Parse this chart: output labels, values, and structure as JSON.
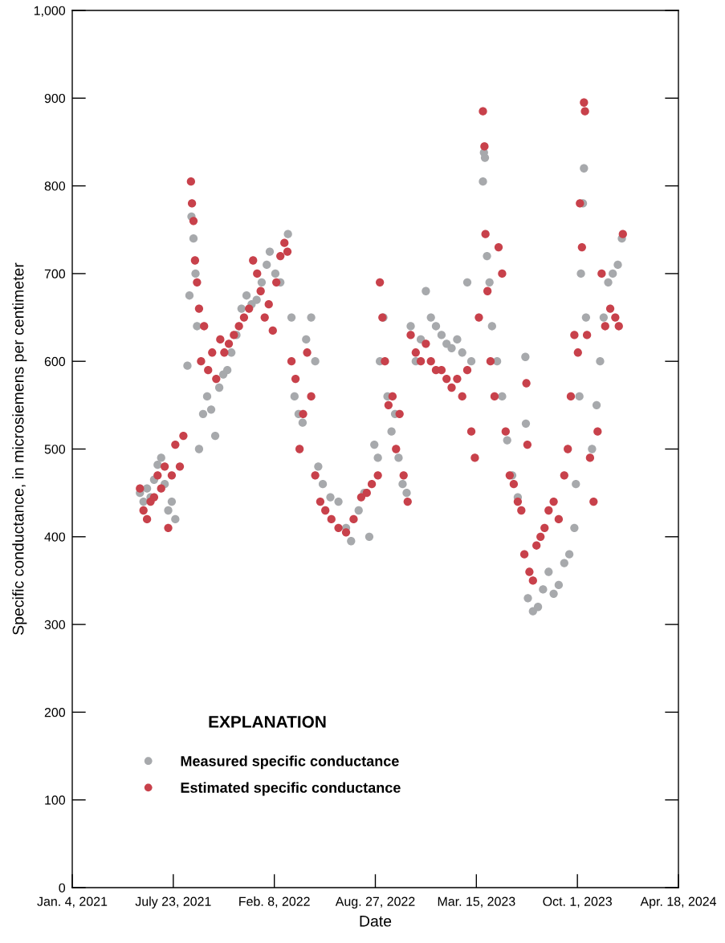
{
  "chart_data": {
    "type": "scatter",
    "xlabel": "Date",
    "ylabel": "Specific conductance, in microsiemens per centimeter",
    "legend_title": "EXPLANATION",
    "legend": "bottom left",
    "marker": "circle",
    "grid": false,
    "xlim": [
      "2021-01-04",
      "2024-04-18"
    ],
    "xticks": [
      {
        "value": "2021-01-04",
        "label": "Jan. 4, 2021"
      },
      {
        "value": "2021-07-23",
        "label": "July 23, 2021"
      },
      {
        "value": "2022-02-08",
        "label": "Feb. 8, 2022"
      },
      {
        "value": "2022-08-27",
        "label": "Aug. 27, 2022"
      },
      {
        "value": "2023-03-15",
        "label": "Mar. 15, 2023"
      },
      {
        "value": "2023-10-01",
        "label": "Oct. 1, 2023"
      },
      {
        "value": "2024-04-18",
        "label": "Apr. 18, 2024"
      }
    ],
    "ylim": [
      0,
      1000
    ],
    "yticks": [
      0,
      100,
      200,
      300,
      400,
      500,
      600,
      700,
      800,
      900,
      {
        "value": 1000,
        "label": "1,000"
      }
    ],
    "series": [
      {
        "name": "Measured specific conductance",
        "color": "#a7a9ac",
        "x": [
          "2021-05-18",
          "2021-05-25",
          "2021-06-01",
          "2021-06-08",
          "2021-06-15",
          "2021-06-22",
          "2021-06-29",
          "2021-07-06",
          "2021-07-13",
          "2021-07-20",
          "2021-07-27",
          "2021-08-20",
          "2021-08-24",
          "2021-08-28",
          "2021-09-01",
          "2021-09-05",
          "2021-09-08",
          "2021-09-12",
          "2021-09-20",
          "2021-09-28",
          "2021-10-06",
          "2021-10-14",
          "2021-10-22",
          "2021-10-30",
          "2021-11-07",
          "2021-11-15",
          "2021-11-25",
          "2021-12-05",
          "2021-12-15",
          "2021-12-25",
          "2022-01-04",
          "2022-01-14",
          "2022-01-24",
          "2022-01-30",
          "2022-02-10",
          "2022-02-20",
          "2022-03-07",
          "2022-03-14",
          "2022-03-20",
          "2022-03-28",
          "2022-04-05",
          "2022-04-12",
          "2022-04-22",
          "2022-04-30",
          "2022-05-06",
          "2022-05-15",
          "2022-05-30",
          "2022-06-15",
          "2022-06-30",
          "2022-07-10",
          "2022-07-25",
          "2022-08-05",
          "2022-08-15",
          "2022-08-25",
          "2022-09-01",
          "2022-09-05",
          "2022-09-12",
          "2022-09-20",
          "2022-09-28",
          "2022-10-05",
          "2022-10-12",
          "2022-10-20",
          "2022-10-28",
          "2022-11-05",
          "2022-11-15",
          "2022-11-25",
          "2022-12-05",
          "2022-12-15",
          "2022-12-25",
          "2023-01-05",
          "2023-01-15",
          "2023-01-25",
          "2023-02-05",
          "2023-02-15",
          "2023-02-25",
          "2023-03-05",
          "2023-03-28",
          "2023-03-30",
          "2023-04-01",
          "2023-04-05",
          "2023-04-10",
          "2023-04-15",
          "2023-04-25",
          "2023-05-05",
          "2023-05-15",
          "2023-05-25",
          "2023-06-05",
          "2023-06-20",
          "2023-06-21",
          "2023-06-25",
          "2023-07-05",
          "2023-07-15",
          "2023-07-25",
          "2023-08-05",
          "2023-08-15",
          "2023-08-25",
          "2023-09-05",
          "2023-09-15",
          "2023-09-25",
          "2023-09-28",
          "2023-10-05",
          "2023-10-08",
          "2023-10-12",
          "2023-10-14",
          "2023-10-18",
          "2023-10-30",
          "2023-11-08",
          "2023-11-15",
          "2023-11-22",
          "2023-12-01",
          "2023-12-10",
          "2023-12-20",
          "2023-12-28"
        ],
        "values": [
          450,
          440,
          455,
          445,
          465,
          482,
          490,
          460,
          430,
          440,
          420,
          595,
          675,
          765,
          740,
          700,
          640,
          500,
          540,
          560,
          545,
          515,
          570,
          585,
          590,
          610,
          630,
          660,
          675,
          665,
          670,
          690,
          710,
          725,
          700,
          690,
          745,
          650,
          560,
          540,
          530,
          625,
          650,
          600,
          480,
          460,
          445,
          440,
          410,
          395,
          430,
          450,
          400,
          505,
          490,
          600,
          650,
          560,
          520,
          540,
          490,
          460,
          450,
          640,
          600,
          625,
          680,
          650,
          640,
          630,
          620,
          615,
          625,
          610,
          690,
          600,
          805,
          838,
          832,
          720,
          690,
          640,
          600,
          560,
          510,
          470,
          445,
          605,
          529,
          330,
          315,
          320,
          340,
          360,
          335,
          345,
          370,
          380,
          410,
          460,
          560,
          700,
          780,
          820,
          650,
          500,
          550,
          600,
          650,
          690,
          700,
          710,
          740
        ]
      },
      {
        "name": "Estimated specific conductance",
        "color": "#c8414b",
        "x": [
          "2021-05-18",
          "2021-05-25",
          "2021-06-01",
          "2021-06-08",
          "2021-06-15",
          "2021-06-22",
          "2021-06-29",
          "2021-07-06",
          "2021-07-13",
          "2021-07-20",
          "2021-07-27",
          "2021-08-05",
          "2021-08-12",
          "2021-08-27",
          "2021-08-29",
          "2021-09-01",
          "2021-09-04",
          "2021-09-08",
          "2021-09-12",
          "2021-09-16",
          "2021-09-22",
          "2021-09-30",
          "2021-10-08",
          "2021-10-16",
          "2021-10-24",
          "2021-11-01",
          "2021-11-10",
          "2021-11-20",
          "2021-11-30",
          "2021-12-10",
          "2021-12-20",
          "2021-12-28",
          "2022-01-05",
          "2022-01-12",
          "2022-01-20",
          "2022-01-28",
          "2022-02-05",
          "2022-02-12",
          "2022-02-20",
          "2022-02-28",
          "2022-03-06",
          "2022-03-14",
          "2022-03-22",
          "2022-03-30",
          "2022-04-06",
          "2022-04-14",
          "2022-04-22",
          "2022-04-30",
          "2022-05-10",
          "2022-05-20",
          "2022-06-01",
          "2022-06-15",
          "2022-06-30",
          "2022-07-15",
          "2022-07-30",
          "2022-08-10",
          "2022-08-20",
          "2022-09-01",
          "2022-09-05",
          "2022-09-10",
          "2022-09-15",
          "2022-09-22",
          "2022-09-30",
          "2022-10-07",
          "2022-10-14",
          "2022-10-22",
          "2022-10-30",
          "2022-11-05",
          "2022-11-15",
          "2022-11-25",
          "2022-12-05",
          "2022-12-15",
          "2022-12-25",
          "2023-01-05",
          "2023-01-15",
          "2023-01-25",
          "2023-02-05",
          "2023-02-15",
          "2023-02-25",
          "2023-03-05",
          "2023-03-12",
          "2023-03-20",
          "2023-03-28",
          "2023-03-31",
          "2023-04-02",
          "2023-04-06",
          "2023-04-12",
          "2023-04-20",
          "2023-04-28",
          "2023-05-05",
          "2023-05-12",
          "2023-05-20",
          "2023-05-28",
          "2023-06-05",
          "2023-06-12",
          "2023-06-18",
          "2023-06-22",
          "2023-06-24",
          "2023-06-28",
          "2023-07-05",
          "2023-07-12",
          "2023-07-20",
          "2023-07-28",
          "2023-08-05",
          "2023-08-15",
          "2023-08-25",
          "2023-09-05",
          "2023-09-12",
          "2023-09-18",
          "2023-09-25",
          "2023-10-02",
          "2023-10-06",
          "2023-10-10",
          "2023-10-14",
          "2023-10-16",
          "2023-10-20",
          "2023-10-26",
          "2023-11-02",
          "2023-11-10",
          "2023-11-18",
          "2023-11-25",
          "2023-12-05",
          "2023-12-15",
          "2023-12-22",
          "2023-12-30"
        ],
        "values": [
          455,
          430,
          420,
          440,
          445,
          470,
          455,
          480,
          410,
          470,
          505,
          480,
          515,
          805,
          780,
          760,
          715,
          690,
          660,
          600,
          640,
          590,
          610,
          580,
          625,
          610,
          620,
          630,
          640,
          650,
          660,
          715,
          700,
          680,
          650,
          665,
          635,
          690,
          720,
          735,
          725,
          600,
          580,
          500,
          540,
          610,
          560,
          470,
          440,
          430,
          420,
          410,
          405,
          420,
          445,
          450,
          460,
          470,
          690,
          650,
          600,
          550,
          560,
          500,
          540,
          470,
          440,
          630,
          610,
          600,
          620,
          600,
          590,
          590,
          580,
          570,
          580,
          560,
          590,
          520,
          490,
          650,
          885,
          845,
          745,
          680,
          600,
          560,
          730,
          700,
          520,
          470,
          460,
          440,
          430,
          380,
          575,
          505,
          360,
          350,
          390,
          400,
          410,
          430,
          440,
          420,
          470,
          500,
          560,
          630,
          610,
          780,
          730,
          895,
          885,
          630,
          490,
          440,
          520,
          700,
          640,
          660,
          650,
          640,
          745
        ]
      }
    ]
  }
}
